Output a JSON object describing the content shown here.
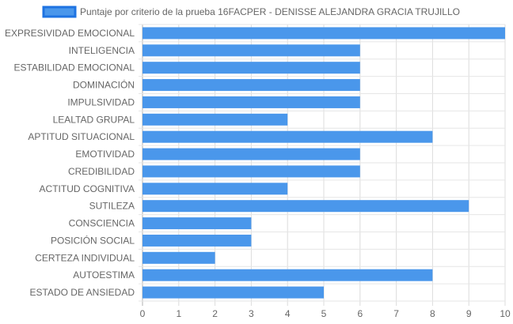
{
  "chart_data": {
    "type": "bar",
    "orientation": "horizontal",
    "categories": [
      "EXPRESIVIDAD EMOCIONAL",
      "INTELIGENCIA",
      "ESTABILIDAD EMOCIONAL",
      "DOMINACIÓN",
      "IMPULSIVIDAD",
      "LEALTAD GRUPAL",
      "APTITUD SITUACIONAL",
      "EMOTIVIDAD",
      "CREDIBILIDAD",
      "ACTITUD COGNITIVA",
      "SUTILEZA",
      "CONSCIENCIA",
      "POSICIÓN SOCIAL",
      "CERTEZA INDIVIDUAL",
      "AUTOESTIMA",
      "ESTADO DE ANSIEDAD"
    ],
    "series": [
      {
        "name": "Puntaje por criterio de la prueba 16FACPER - DENISSE ALEJANDRA GRACIA TRUJILLO",
        "values": [
          10,
          6,
          6,
          6,
          6,
          4,
          8,
          6,
          6,
          4,
          9,
          3,
          3,
          2,
          8,
          5
        ],
        "color": "#4a97eb",
        "border_color": "#1e73e2"
      }
    ],
    "x_ticks": [
      "0",
      "1",
      "2",
      "3",
      "4",
      "5",
      "6",
      "7",
      "8",
      "9",
      "10"
    ],
    "xlim": [
      0,
      10
    ],
    "grid": true,
    "legend_position": "top"
  }
}
